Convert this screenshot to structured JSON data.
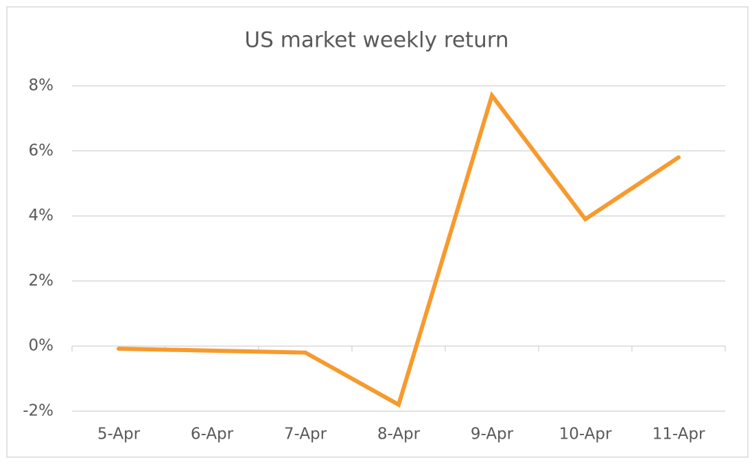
{
  "chart_data": {
    "type": "line",
    "title": "US market weekly return",
    "categories": [
      "5-Apr",
      "6-Apr",
      "7-Apr",
      "8-Apr",
      "9-Apr",
      "10-Apr",
      "11-Apr"
    ],
    "series": [
      {
        "name": "US market",
        "color": "#f79a2e",
        "values": [
          -0.08,
          -0.14,
          -0.2,
          -1.8,
          7.7,
          3.9,
          5.8
        ]
      }
    ],
    "ylim": [
      -2,
      8
    ],
    "yticks": [
      {
        "value": -2,
        "label": "-2%"
      },
      {
        "value": 0,
        "label": "0%"
      },
      {
        "value": 2,
        "label": "2%"
      },
      {
        "value": 4,
        "label": "4%"
      },
      {
        "value": 6,
        "label": "6%"
      },
      {
        "value": 8,
        "label": "8%"
      }
    ],
    "grid": true
  }
}
